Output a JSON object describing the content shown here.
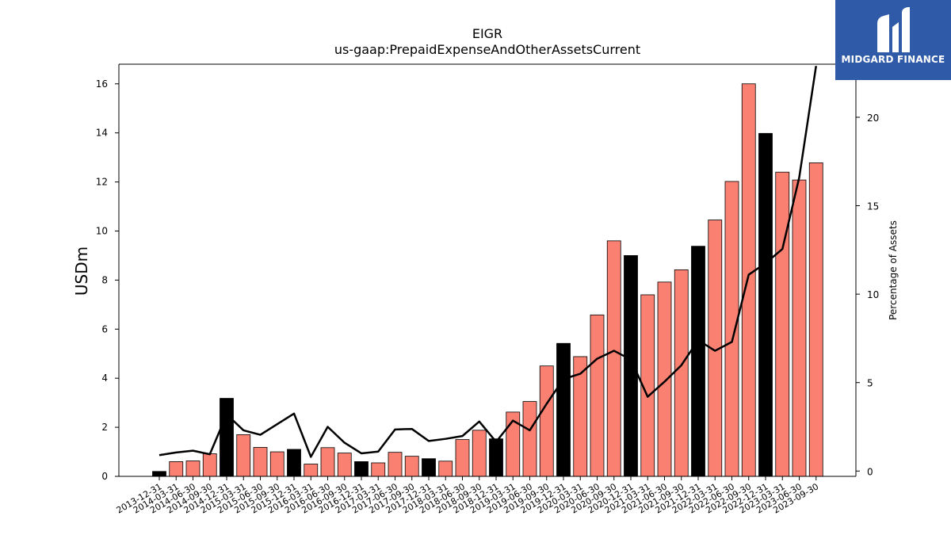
{
  "logo": {
    "text": "MIDGARD FINANCE"
  },
  "chart_data": {
    "type": "bar",
    "title": "EIGR",
    "subtitle": "us-gaap:PrepaidExpenseAndOtherAssetsCurrent",
    "ylabel": "USDm",
    "y2label": "Percentage of Assets",
    "ylim": [
      0,
      16.8
    ],
    "y2lim": [
      -0.3,
      23
    ],
    "yticks": [
      "0",
      "2",
      "4",
      "6",
      "8",
      "10",
      "12",
      "14",
      "16"
    ],
    "y2ticks": [
      "0",
      "5",
      "10",
      "15",
      "20"
    ],
    "colors": {
      "quarter": "#fa8072",
      "year_end": "#000000",
      "line": "#000000"
    },
    "categories": [
      "2013-12-31",
      "2014-03-31",
      "2014-06-30",
      "2014-09-30",
      "2014-12-31",
      "2015-03-31",
      "2015-06-30",
      "2015-09-30",
      "2015-12-31",
      "2016-03-31",
      "2016-06-30",
      "2016-09-30",
      "2016-12-31",
      "2017-03-31",
      "2017-06-30",
      "2017-09-30",
      "2017-12-31",
      "2018-03-31",
      "2018-06-30",
      "2018-09-30",
      "2018-12-31",
      "2019-03-31",
      "2019-06-30",
      "2019-09-30",
      "2019-12-31",
      "2020-03-31",
      "2020-06-30",
      "2020-09-30",
      "2020-12-31",
      "2021-03-31",
      "2021-06-30",
      "2021-09-30",
      "2021-12-31",
      "2022-03-31",
      "2022-06-30",
      "2022-09-30",
      "2022-12-31",
      "2023-03-31",
      "2023-06-30",
      "2023-09-30"
    ],
    "series": [
      {
        "values": [
          0.2,
          0.6,
          0.63,
          0.92,
          3.18,
          1.7,
          1.18,
          1.0,
          1.1,
          0.5,
          1.17,
          0.95,
          0.6,
          0.55,
          0.98,
          0.82,
          0.72,
          0.62,
          1.5,
          1.88,
          1.53,
          2.62,
          3.05,
          4.5,
          5.42,
          4.88,
          6.58,
          9.6,
          9.0,
          7.4,
          7.92,
          8.42,
          9.38,
          10.45,
          12.02,
          16.0,
          13.98,
          12.4,
          12.08,
          12.78
        ]
      },
      {
        "values": [
          0.9,
          1.05,
          1.15,
          0.95,
          3.2,
          2.3,
          2.05,
          2.65,
          3.25,
          0.8,
          2.5,
          1.6,
          1.0,
          1.1,
          2.35,
          2.38,
          1.7,
          1.82,
          1.98,
          2.8,
          1.65,
          2.85,
          2.3,
          3.8,
          5.2,
          5.5,
          6.35,
          6.8,
          6.3,
          4.2,
          5.05,
          5.98,
          7.4,
          6.8,
          7.3,
          11.1,
          11.75,
          12.55,
          16.6,
          22.9
        ]
      }
    ]
  }
}
